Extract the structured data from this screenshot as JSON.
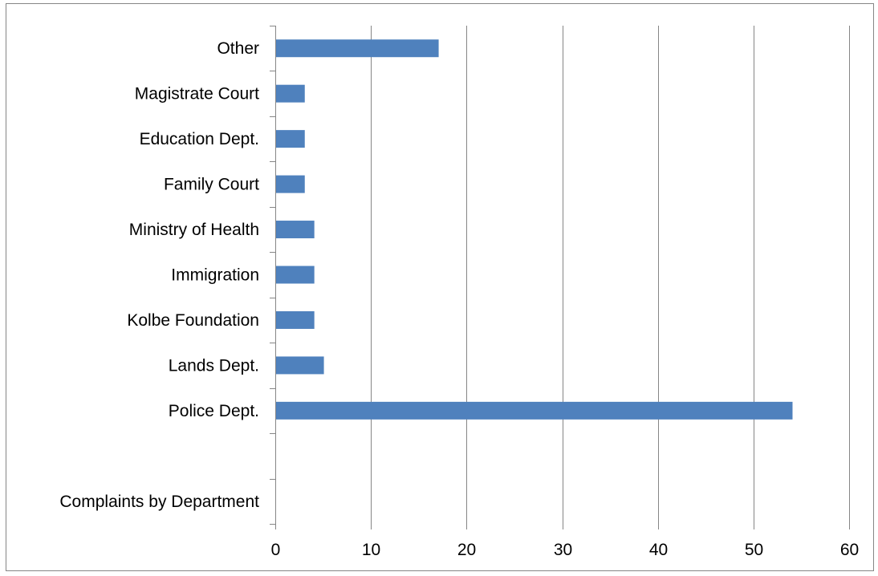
{
  "chart_data": {
    "type": "bar",
    "orientation": "horizontal",
    "categories": [
      "Complaints by Department",
      "",
      "Police Dept.",
      "Lands Dept.",
      "Kolbe Foundation",
      "Immigration",
      "Ministry of Health",
      "Family Court",
      "Education Dept.",
      "Magistrate Court",
      "Other"
    ],
    "values": [
      null,
      null,
      54,
      5,
      4,
      4,
      4,
      3,
      3,
      3,
      17
    ],
    "bar_color": "#4F81BD",
    "xlim": [
      0,
      60
    ],
    "xticks": [
      0,
      10,
      20,
      30,
      40,
      50,
      60
    ],
    "xtick_labels": [
      "0",
      "10",
      "20",
      "30",
      "40",
      "50",
      "60"
    ],
    "grid": "vertical",
    "legend": "none",
    "title": "",
    "xlabel": "",
    "ylabel": ""
  }
}
